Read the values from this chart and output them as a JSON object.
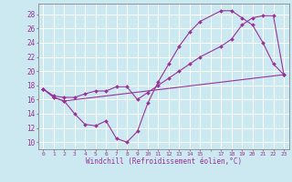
{
  "xlabel": "Windchill (Refroidissement éolien,°C)",
  "bg_color": "#cce8f0",
  "line_color": "#993399",
  "grid_color": "#aaddee",
  "xlim": [
    -0.5,
    23.5
  ],
  "ylim": [
    9,
    29.5
  ],
  "xtick_labels": [
    "0",
    "1",
    "2",
    "3",
    "4",
    "5",
    "6",
    "7",
    "8",
    "9",
    "10",
    "11",
    "12",
    "13",
    "14",
    "15",
    "",
    "17",
    "18",
    "19",
    "20",
    "21",
    "22",
    "23"
  ],
  "xtick_vals": [
    0,
    1,
    2,
    3,
    4,
    5,
    6,
    7,
    8,
    9,
    10,
    11,
    12,
    13,
    14,
    15,
    16,
    17,
    18,
    19,
    20,
    21,
    22,
    23
  ],
  "yticks": [
    10,
    12,
    14,
    16,
    18,
    20,
    22,
    24,
    26,
    28
  ],
  "lines": [
    {
      "x": [
        0,
        1,
        2,
        3,
        4,
        5,
        6,
        7,
        8,
        9,
        10,
        11,
        12,
        13,
        14,
        15,
        17,
        18,
        19,
        20,
        21,
        22,
        23
      ],
      "y": [
        17.5,
        16.3,
        15.8,
        14.0,
        12.5,
        12.3,
        13.0,
        10.5,
        10.0,
        11.5,
        15.5,
        18.5,
        21.0,
        23.5,
        25.5,
        27.0,
        28.5,
        28.5,
        27.5,
        26.5,
        24.0,
        21.0,
        19.5
      ]
    },
    {
      "x": [
        0,
        1,
        2,
        3,
        4,
        5,
        6,
        7,
        8,
        9,
        10,
        11,
        12,
        13,
        14,
        15,
        17,
        18,
        19,
        20,
        21,
        22,
        23
      ],
      "y": [
        17.5,
        16.5,
        16.3,
        16.3,
        16.8,
        17.2,
        17.2,
        17.8,
        17.8,
        16.0,
        17.0,
        18.0,
        19.0,
        20.0,
        21.0,
        22.0,
        23.5,
        24.5,
        26.5,
        27.5,
        27.8,
        27.8,
        19.5
      ]
    },
    {
      "x": [
        0,
        1,
        2,
        23
      ],
      "y": [
        17.5,
        16.3,
        15.8,
        19.5
      ]
    }
  ]
}
